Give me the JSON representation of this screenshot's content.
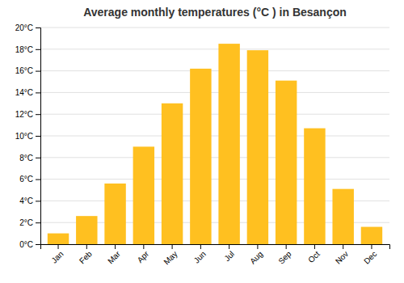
{
  "chart_data": {
    "type": "bar",
    "title": "Average monthly temperatures (°C ) in Besançon",
    "categories": [
      "Jan",
      "Feb",
      "Mar",
      "Apr",
      "May",
      "Jun",
      "Jul",
      "Aug",
      "Sep",
      "Oct",
      "Nov",
      "Dec"
    ],
    "values": [
      1.0,
      2.6,
      5.6,
      9.0,
      13.0,
      16.2,
      18.5,
      17.9,
      15.1,
      10.7,
      5.1,
      1.6
    ],
    "color": "#FFC020",
    "ylim": [
      0,
      20
    ],
    "yticks": [
      {
        "value": 0,
        "label": "0°C"
      },
      {
        "value": 2,
        "label": "2°C"
      },
      {
        "value": 4,
        "label": "4°C"
      },
      {
        "value": 6,
        "label": "6°C"
      },
      {
        "value": 8,
        "label": "8°C"
      },
      {
        "value": 10,
        "label": "10°C"
      },
      {
        "value": 12,
        "label": "12°C"
      },
      {
        "value": 14,
        "label": "14°C"
      },
      {
        "value": 16,
        "label": "16°C"
      },
      {
        "value": 18,
        "label": "18°C"
      },
      {
        "value": 20,
        "label": "20°C"
      }
    ],
    "grid": true
  }
}
